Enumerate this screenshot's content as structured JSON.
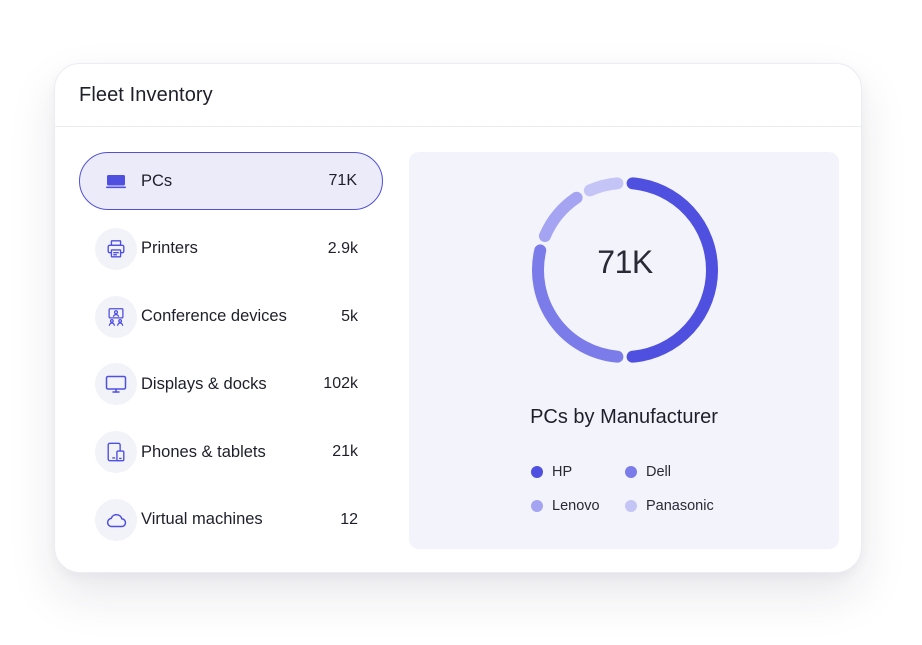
{
  "card": {
    "title": "Fleet Inventory"
  },
  "sidebar": {
    "items": [
      {
        "label": "PCs",
        "count": "71K",
        "icon": "laptop-icon",
        "active": true
      },
      {
        "label": "Printers",
        "count": "2.9k",
        "icon": "printer-icon",
        "active": false
      },
      {
        "label": "Conference devices",
        "count": "5k",
        "icon": "conference-icon",
        "active": false
      },
      {
        "label": "Displays & docks",
        "count": "102k",
        "icon": "monitor-icon",
        "active": false
      },
      {
        "label": "Phones & tablets",
        "count": "21k",
        "icon": "phone-tablet-icon",
        "active": false
      },
      {
        "label": "Virtual machines",
        "count": "12",
        "icon": "cloud-icon",
        "active": false
      }
    ]
  },
  "colors": {
    "accent": "#5151d8",
    "active_bg": "#ebebfa",
    "panel_bg": "#f3f3fb",
    "icon_bg": "#f2f2f9"
  },
  "chart_data": {
    "type": "pie",
    "style": "donut",
    "title": "PCs by Manufacturer",
    "center_label": "71K",
    "categories": [
      "HP",
      "Dell",
      "Lenovo",
      "Panasonic"
    ],
    "values": [
      50,
      30,
      12,
      8
    ],
    "colors": [
      "#4f4fe0",
      "#7b7bea",
      "#a4a4f2",
      "#c4c4f7"
    ],
    "legend_placement": "bottom"
  }
}
